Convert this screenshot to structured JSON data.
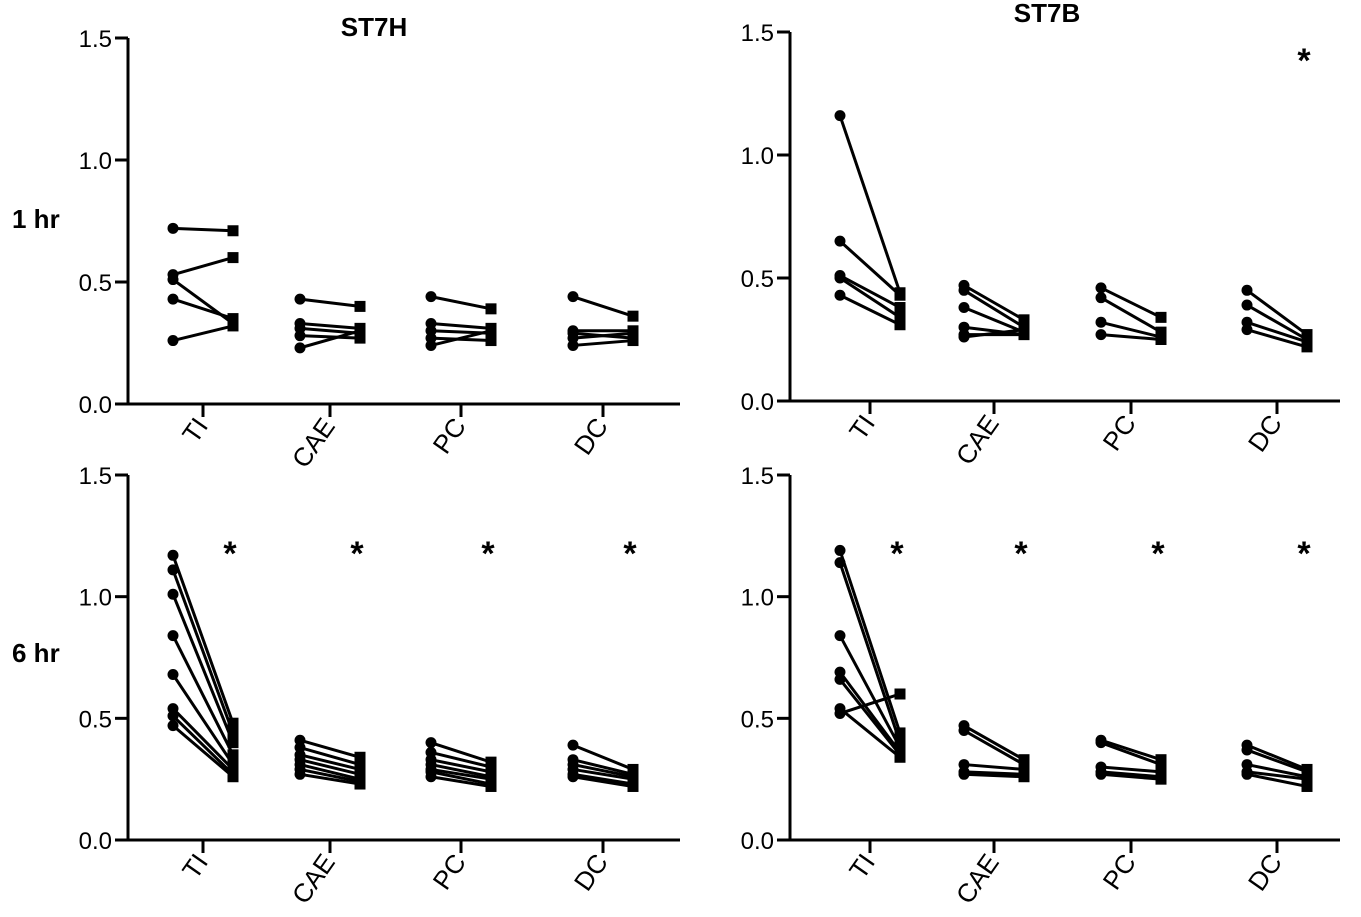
{
  "row_labels": [
    "1 hr",
    "6 hr"
  ],
  "chart_data": [
    {
      "type": "line",
      "title": "ST7H",
      "xlabel": "",
      "ylabel": "",
      "ylim": [
        0.0,
        1.5
      ],
      "yticks": [
        "0.0",
        "0.5",
        "1.0",
        "1.5"
      ],
      "categories": [
        "TI",
        "CAE",
        "PC",
        "DC"
      ],
      "significance": [
        "",
        "",
        "",
        ""
      ],
      "pairs": [
        [
          [
            0.72,
            0.71
          ],
          [
            0.53,
            0.6
          ],
          [
            0.51,
            0.33
          ],
          [
            0.43,
            0.35
          ],
          [
            0.26,
            0.32
          ]
        ],
        [
          [
            0.43,
            0.4
          ],
          [
            0.33,
            0.31
          ],
          [
            0.31,
            0.29
          ],
          [
            0.28,
            0.27
          ],
          [
            0.23,
            0.3
          ]
        ],
        [
          [
            0.44,
            0.39
          ],
          [
            0.33,
            0.31
          ],
          [
            0.3,
            0.29
          ],
          [
            0.27,
            0.26
          ],
          [
            0.24,
            0.3
          ]
        ],
        [
          [
            0.44,
            0.36
          ],
          [
            0.3,
            0.3
          ],
          [
            0.29,
            0.27
          ],
          [
            0.27,
            0.29
          ],
          [
            0.24,
            0.26
          ]
        ]
      ]
    },
    {
      "type": "line",
      "title": "ST7B",
      "xlabel": "",
      "ylabel": "",
      "ylim": [
        0.0,
        1.5
      ],
      "yticks": [
        "0.0",
        "0.5",
        "1.0",
        "1.5"
      ],
      "categories": [
        "TI",
        "CAE",
        "PC",
        "DC"
      ],
      "significance": [
        "",
        "",
        "",
        "*"
      ],
      "pairs": [
        [
          [
            1.16,
            0.44
          ],
          [
            0.65,
            0.43
          ],
          [
            0.51,
            0.38
          ],
          [
            0.5,
            0.34
          ],
          [
            0.43,
            0.31
          ]
        ],
        [
          [
            0.47,
            0.33
          ],
          [
            0.45,
            0.3
          ],
          [
            0.38,
            0.28
          ],
          [
            0.3,
            0.27
          ],
          [
            0.27,
            0.27
          ],
          [
            0.26,
            0.29
          ]
        ],
        [
          [
            0.46,
            0.34
          ],
          [
            0.42,
            0.28
          ],
          [
            0.32,
            0.26
          ],
          [
            0.27,
            0.25
          ]
        ],
        [
          [
            0.45,
            0.27
          ],
          [
            0.39,
            0.25
          ],
          [
            0.32,
            0.24
          ],
          [
            0.29,
            0.22
          ]
        ]
      ]
    },
    {
      "type": "line",
      "title": "",
      "xlabel": "",
      "ylabel": "",
      "ylim": [
        0.0,
        1.5
      ],
      "yticks": [
        "0.0",
        "0.5",
        "1.0",
        "1.5"
      ],
      "categories": [
        "TI",
        "CAE",
        "PC",
        "DC"
      ],
      "significance": [
        "*",
        "*",
        "*",
        "*"
      ],
      "pairs": [
        [
          [
            1.17,
            0.48
          ],
          [
            1.11,
            0.44
          ],
          [
            1.01,
            0.4
          ],
          [
            0.84,
            0.35
          ],
          [
            0.68,
            0.31
          ],
          [
            0.54,
            0.29
          ],
          [
            0.51,
            0.27
          ],
          [
            0.47,
            0.26
          ]
        ],
        [
          [
            0.41,
            0.34
          ],
          [
            0.38,
            0.31
          ],
          [
            0.35,
            0.29
          ],
          [
            0.33,
            0.27
          ],
          [
            0.31,
            0.25
          ],
          [
            0.29,
            0.24
          ],
          [
            0.27,
            0.23
          ]
        ],
        [
          [
            0.4,
            0.32
          ],
          [
            0.36,
            0.3
          ],
          [
            0.33,
            0.28
          ],
          [
            0.31,
            0.26
          ],
          [
            0.29,
            0.25
          ],
          [
            0.28,
            0.23
          ],
          [
            0.26,
            0.22
          ]
        ],
        [
          [
            0.39,
            0.29
          ],
          [
            0.33,
            0.27
          ],
          [
            0.31,
            0.26
          ],
          [
            0.29,
            0.25
          ],
          [
            0.27,
            0.23
          ],
          [
            0.26,
            0.22
          ]
        ]
      ]
    },
    {
      "type": "line",
      "title": "",
      "xlabel": "",
      "ylabel": "",
      "ylim": [
        0.0,
        1.5
      ],
      "yticks": [
        "0.0",
        "0.5",
        "1.0",
        "1.5"
      ],
      "categories": [
        "TI",
        "CAE",
        "PC",
        "DC"
      ],
      "significance": [
        "*",
        "*",
        "*",
        "*"
      ],
      "pairs": [
        [
          [
            1.19,
            0.44
          ],
          [
            1.14,
            0.4
          ],
          [
            0.84,
            0.38
          ],
          [
            0.69,
            0.36
          ],
          [
            0.66,
            0.35
          ],
          [
            0.54,
            0.34
          ],
          [
            0.52,
            0.6
          ]
        ],
        [
          [
            0.47,
            0.33
          ],
          [
            0.45,
            0.31
          ],
          [
            0.31,
            0.29
          ],
          [
            0.28,
            0.27
          ],
          [
            0.27,
            0.26
          ]
        ],
        [
          [
            0.41,
            0.33
          ],
          [
            0.4,
            0.31
          ],
          [
            0.3,
            0.28
          ],
          [
            0.28,
            0.26
          ],
          [
            0.27,
            0.25
          ]
        ],
        [
          [
            0.39,
            0.29
          ],
          [
            0.37,
            0.28
          ],
          [
            0.31,
            0.26
          ],
          [
            0.28,
            0.25
          ],
          [
            0.27,
            0.22
          ]
        ]
      ]
    }
  ]
}
